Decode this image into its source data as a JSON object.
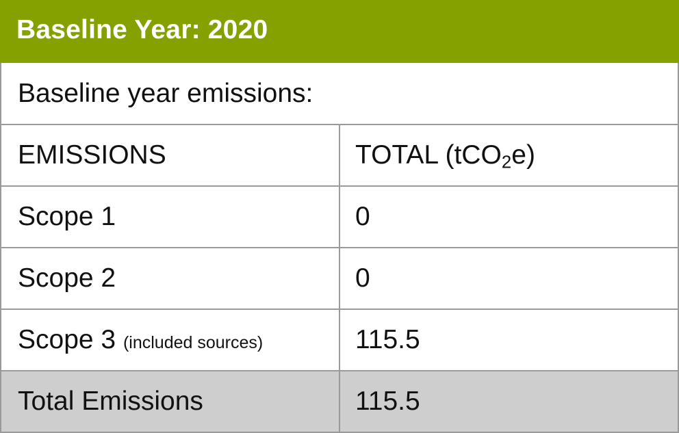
{
  "header": {
    "title": "Baseline Year: 2020"
  },
  "table": {
    "intro": "Baseline year emissions:",
    "columns": {
      "emissions": "EMISSIONS",
      "total_prefix": "TOTAL (tCO",
      "total_sub": "2",
      "total_suffix": "e)"
    },
    "rows": [
      {
        "label": "Scope 1",
        "note": "",
        "value": "0"
      },
      {
        "label": "Scope 2",
        "note": "",
        "value": "0"
      },
      {
        "label": "Scope 3",
        "note": "(included sources)",
        "value": "115.5"
      }
    ],
    "total": {
      "label": "Total Emissions",
      "value": "115.5"
    }
  },
  "colors": {
    "header_bg": "#85a100",
    "total_row_bg": "#cecece",
    "border": "#9a9a9a"
  }
}
